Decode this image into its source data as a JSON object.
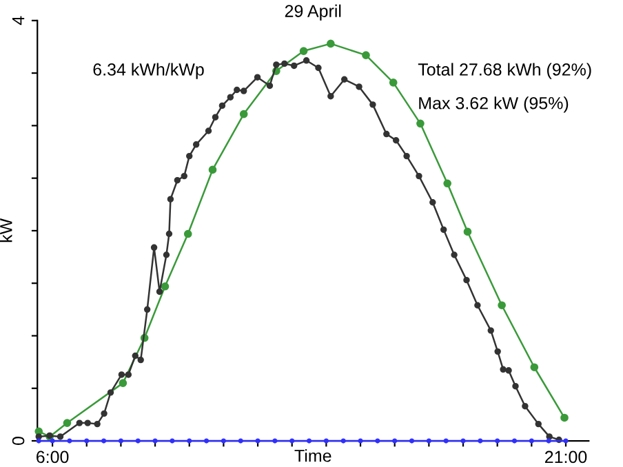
{
  "chart_data": {
    "type": "line",
    "title": "29 April",
    "xlabel": "Time",
    "ylabel": "kW",
    "annotations": [
      "6.34 kWh/kWp",
      "Total 27.68 kWh (92%)",
      "Max 3.62 kW (95%)"
    ],
    "xlim": [
      5.56,
      21.67
    ],
    "ylim": [
      0,
      4
    ],
    "xticks": [
      {
        "value": 6,
        "label": "6:00"
      },
      {
        "value": 7,
        "label": null
      },
      {
        "value": 8,
        "label": null
      },
      {
        "value": 9,
        "label": null
      },
      {
        "value": 10,
        "label": null
      },
      {
        "value": 11,
        "label": null
      },
      {
        "value": 12,
        "label": null
      },
      {
        "value": 13,
        "label": null
      },
      {
        "value": 14,
        "label": null
      },
      {
        "value": 15,
        "label": null
      },
      {
        "value": 16,
        "label": null
      },
      {
        "value": 17,
        "label": null
      },
      {
        "value": 18,
        "label": null
      },
      {
        "value": 19,
        "label": null
      },
      {
        "value": 20,
        "label": null
      },
      {
        "value": 21,
        "label": "21:00"
      }
    ],
    "yticks": [
      0,
      {
        "value": 0.5,
        "label": null
      },
      {
        "value": 1,
        "label": null
      },
      {
        "value": 1.5,
        "label": null
      },
      {
        "value": 2,
        "label": null
      },
      {
        "value": 2.5,
        "label": null
      },
      {
        "value": 3,
        "label": null
      },
      {
        "value": 3.5,
        "label": null
      },
      4
    ],
    "grid": false,
    "legend": false,
    "marker": "circle",
    "line_style": "solid",
    "series": [
      {
        "color": "#3a9a3a",
        "x": [
          5.6,
          5.92,
          6.43,
          8.06,
          8.69,
          9.29,
          9.96,
          10.68,
          11.59,
          12.54,
          13.34,
          14.13,
          15.16,
          15.96,
          16.75,
          17.54,
          18.13,
          19.13,
          20.08,
          20.96
        ],
        "values": [
          0.09,
          0.04,
          0.17,
          0.55,
          0.98,
          1.47,
          1.97,
          2.58,
          3.11,
          3.52,
          3.71,
          3.78,
          3.67,
          3.41,
          3.02,
          2.45,
          1.99,
          1.29,
          0.7,
          0.22
        ]
      },
      {
        "color": "#333333",
        "x": [
          5.6,
          5.92,
          6.23,
          6.79,
          7.03,
          7.31,
          7.51,
          7.7,
          8.02,
          8.22,
          8.42,
          8.58,
          8.77,
          8.97,
          9.13,
          9.33,
          9.41,
          9.45,
          9.65,
          9.85,
          10.0,
          10.2,
          10.56,
          10.76,
          10.96,
          11.2,
          11.39,
          11.59,
          11.99,
          12.35,
          12.54,
          12.78,
          13.06,
          13.42,
          13.77,
          14.13,
          14.53,
          14.96,
          15.36,
          15.76,
          16.04,
          16.35,
          16.71,
          17.11,
          17.43,
          17.74,
          18.1,
          18.42,
          18.81,
          19.01,
          19.17,
          19.33,
          19.53,
          19.81,
          20.2,
          20.52,
          20.8
        ],
        "values": [
          0.04,
          0.05,
          0.04,
          0.17,
          0.17,
          0.16,
          0.26,
          0.46,
          0.63,
          0.63,
          0.81,
          0.77,
          1.25,
          1.84,
          1.42,
          1.77,
          1.97,
          2.3,
          2.48,
          2.52,
          2.71,
          2.82,
          2.95,
          3.08,
          3.19,
          3.27,
          3.34,
          3.33,
          3.46,
          3.38,
          3.58,
          3.59,
          3.57,
          3.62,
          3.55,
          3.28,
          3.44,
          3.37,
          3.2,
          2.92,
          2.86,
          2.71,
          2.52,
          2.27,
          2.01,
          1.77,
          1.53,
          1.29,
          1.05,
          0.85,
          0.68,
          0.67,
          0.52,
          0.33,
          0.16,
          0.04,
          0.01
        ]
      },
      {
        "color": "#3030ff",
        "x": [
          5.6,
          6.0,
          6.5,
          7.0,
          7.5,
          8.0,
          8.5,
          9.0,
          9.5,
          10.0,
          10.5,
          11.0,
          11.5,
          12.0,
          12.5,
          13.0,
          13.5,
          14.0,
          14.5,
          15.0,
          15.5,
          16.0,
          16.5,
          17.0,
          17.5,
          18.0,
          18.5,
          19.0,
          19.5,
          20.0,
          20.5,
          21.0
        ],
        "values": [
          0,
          0,
          0,
          0,
          0,
          0,
          0,
          0,
          0,
          0,
          0,
          0,
          0,
          0,
          0,
          0,
          0,
          0,
          0,
          0,
          0,
          0,
          0,
          0,
          0,
          0,
          0,
          0,
          0,
          0,
          0,
          0
        ]
      }
    ]
  }
}
